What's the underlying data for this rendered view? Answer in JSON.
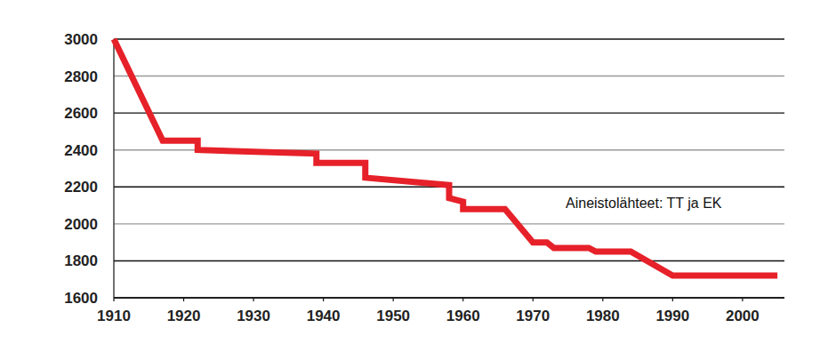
{
  "chart_data": {
    "type": "line",
    "annotation": "Aineistolähteet: TT ja EK",
    "x": [
      1910,
      1917,
      1922,
      1922,
      1939,
      1939,
      1946,
      1946,
      1958,
      1958,
      1960,
      1960,
      1966,
      1970,
      1972,
      1973,
      1978,
      1979,
      1984,
      1990,
      2005
    ],
    "values": [
      3000,
      2450,
      2450,
      2400,
      2380,
      2330,
      2330,
      2250,
      2210,
      2140,
      2120,
      2080,
      2080,
      1900,
      1900,
      1870,
      1870,
      1850,
      1850,
      1720,
      1720
    ],
    "color": "#e62129",
    "xlim": [
      1910,
      2006
    ],
    "xticks": [
      1910,
      1920,
      1930,
      1940,
      1950,
      1960,
      1970,
      1980,
      1990,
      2000
    ],
    "ylim": [
      1600,
      3000
    ],
    "yticks": [
      1600,
      1800,
      2000,
      2200,
      2400,
      2600,
      2800,
      3000
    ],
    "grid": true
  }
}
